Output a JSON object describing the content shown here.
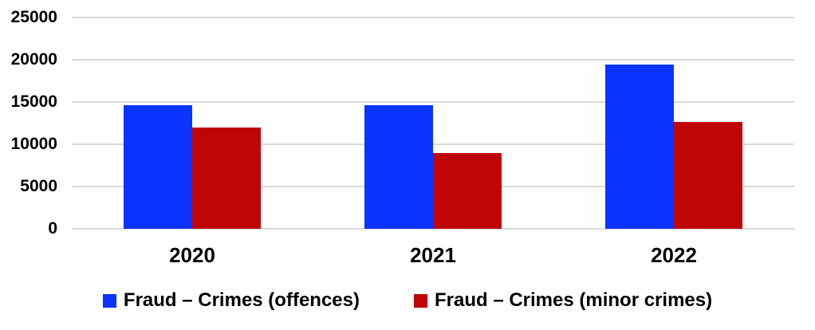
{
  "chart_data": {
    "type": "bar",
    "title": "",
    "xlabel": "",
    "ylabel": "",
    "categories": [
      "2020",
      "2021",
      "2022"
    ],
    "series": [
      {
        "name": "Fraud – Crimes (offences)",
        "color": "#0a33ff",
        "values": [
          14600,
          14600,
          19400
        ]
      },
      {
        "name": "Fraud – Crimes (minor crimes)",
        "color": "#c00505",
        "values": [
          12000,
          9000,
          12600
        ]
      }
    ],
    "ylim": [
      0,
      25000
    ],
    "ytick_step": 5000,
    "ytick_labels": [
      "0",
      "5000",
      "10000",
      "15000",
      "20000",
      "25000"
    ],
    "grid": true,
    "gridline_color": "#d9d9d9",
    "legend_position": "bottom",
    "text_color": "#000000"
  }
}
